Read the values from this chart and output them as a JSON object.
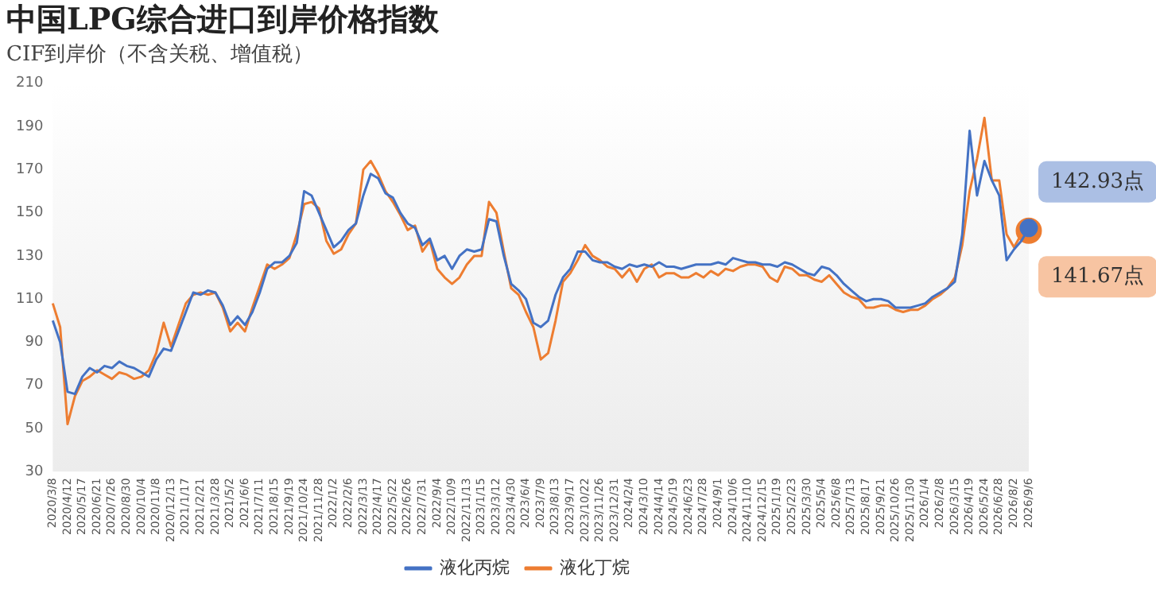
{
  "chart_data": {
    "type": "line",
    "title": "中国LPG综合进口到岸价格指数",
    "subtitle": "CIF到岸价（不含关税、增值税）",
    "categories": [
      "2020/3/8",
      null,
      "2020/4/12",
      null,
      "2020/5/17",
      null,
      "2020/6/21",
      null,
      "2020/7/26",
      null,
      "2020/8/30",
      null,
      "2020/10/4",
      null,
      "2020/11/8",
      null,
      "2020/12/13",
      null,
      "2021/1/17",
      null,
      "2021/2/21",
      null,
      "2021/3/28",
      null,
      "2021/5/2",
      null,
      "2021/6/6",
      null,
      "2021/7/11",
      null,
      "2021/8/15",
      null,
      "2021/9/19",
      null,
      "2021/10/24",
      null,
      "2021/11/28",
      null,
      "2022/1/2",
      null,
      "2022/2/6",
      null,
      "2022/3/13",
      null,
      "2022/4/17",
      null,
      "2022/5/22",
      null,
      "2022/6/26",
      null,
      "2022/7/31",
      null,
      "2022/9/4",
      null,
      "2022/10/9",
      null,
      "2022/11/13",
      null,
      "2023/1/15",
      null,
      "2023/3/12",
      null,
      "2023/4/30",
      null,
      "2023/6/4",
      null,
      "2023/7/9",
      null,
      "2023/8/13",
      null,
      "2023/9/17",
      null,
      "2023/10/22",
      null,
      "2023/11/26",
      null,
      "2023/12/31",
      null,
      "2024/2/4",
      null,
      "2024/3/10",
      null,
      "2024/4/14",
      null,
      "2024/5/19",
      null,
      "2024/6/23",
      null,
      "2024/7/28",
      null,
      "2024/9/1",
      null,
      "2024/10/6",
      null,
      "2024/11/10",
      null,
      "2024/12/15",
      null,
      "2025/1/19",
      null,
      "2025/2/23",
      null,
      "2025/3/30",
      null,
      "2025/5/4",
      null,
      "2025/6/8",
      null,
      "2025/7/13",
      null,
      "2025/8/17",
      null,
      "2025/9/21",
      null,
      "2025/10/26",
      null,
      "2025/11/30",
      null,
      "2026/1/4",
      null,
      "2026/2/8",
      null,
      "2026/3/15",
      null,
      "2026/4/19",
      null,
      "2026/5/24",
      null,
      "2026/6/28",
      null,
      "2026/8/2",
      null,
      "2026/9/6"
    ],
    "series": [
      {
        "name": "液化丙烷",
        "color": "#4472c4",
        "values": [
          100,
          90,
          67,
          66,
          74,
          78,
          76,
          79,
          78,
          81,
          79,
          78,
          76,
          74,
          82,
          87,
          86,
          95,
          104,
          113,
          112,
          114,
          113,
          107,
          98,
          102,
          98,
          104,
          113,
          124,
          127,
          127,
          130,
          136,
          160,
          158,
          150,
          142,
          134,
          137,
          142,
          145,
          158,
          168,
          166,
          159,
          157,
          150,
          145,
          143,
          135,
          138,
          128,
          130,
          124,
          130,
          133,
          132,
          133,
          147,
          146,
          130,
          117,
          114,
          110,
          99,
          97,
          100,
          112,
          120,
          124,
          132,
          132,
          128,
          127,
          127,
          125,
          124,
          126,
          125,
          126,
          125,
          127,
          125,
          125,
          124,
          125,
          126,
          126,
          126,
          127,
          126,
          129,
          128,
          127,
          127,
          126,
          126,
          125,
          127,
          126,
          124,
          122,
          121,
          125,
          124,
          121,
          117,
          114,
          111,
          109,
          110,
          110,
          109,
          106,
          106,
          106,
          107,
          108,
          111,
          113,
          115,
          118,
          140,
          188,
          158,
          174,
          165,
          158,
          128,
          133,
          137,
          142.93
        ]
      },
      {
        "name": "液化丁烷",
        "color": "#ed7d31",
        "values": [
          108,
          97,
          52,
          65,
          72,
          74,
          77,
          75,
          73,
          76,
          75,
          73,
          74,
          77,
          85,
          99,
          88,
          98,
          108,
          112,
          113,
          112,
          113,
          106,
          95,
          99,
          95,
          106,
          116,
          126,
          124,
          126,
          129,
          140,
          154,
          155,
          152,
          137,
          131,
          133,
          140,
          145,
          170,
          174,
          168,
          160,
          155,
          149,
          142,
          144,
          132,
          137,
          124,
          120,
          117,
          120,
          126,
          130,
          130,
          155,
          150,
          132,
          115,
          112,
          104,
          97,
          82,
          85,
          100,
          118,
          122,
          128,
          135,
          130,
          128,
          125,
          124,
          120,
          124,
          118,
          124,
          126,
          120,
          122,
          122,
          120,
          120,
          122,
          120,
          123,
          121,
          124,
          123,
          125,
          126,
          126,
          125,
          120,
          118,
          125,
          124,
          121,
          121,
          119,
          118,
          121,
          117,
          113,
          111,
          110,
          106,
          106,
          107,
          107,
          105,
          104,
          105,
          105,
          107,
          110,
          112,
          115,
          120,
          135,
          160,
          175,
          194,
          165,
          165,
          140,
          134,
          140,
          141.67
        ]
      }
    ],
    "ylim": [
      30,
      210
    ],
    "yticks": [
      30,
      50,
      70,
      90,
      110,
      130,
      150,
      170,
      190,
      210
    ],
    "annotations": [
      {
        "text": "142.93点",
        "x": "2026/9/6",
        "y": 142.93
      },
      {
        "text": "141.67点",
        "x": "2026/9/6",
        "y": 141.67
      }
    ],
    "grid": false,
    "legend": "bottom"
  }
}
